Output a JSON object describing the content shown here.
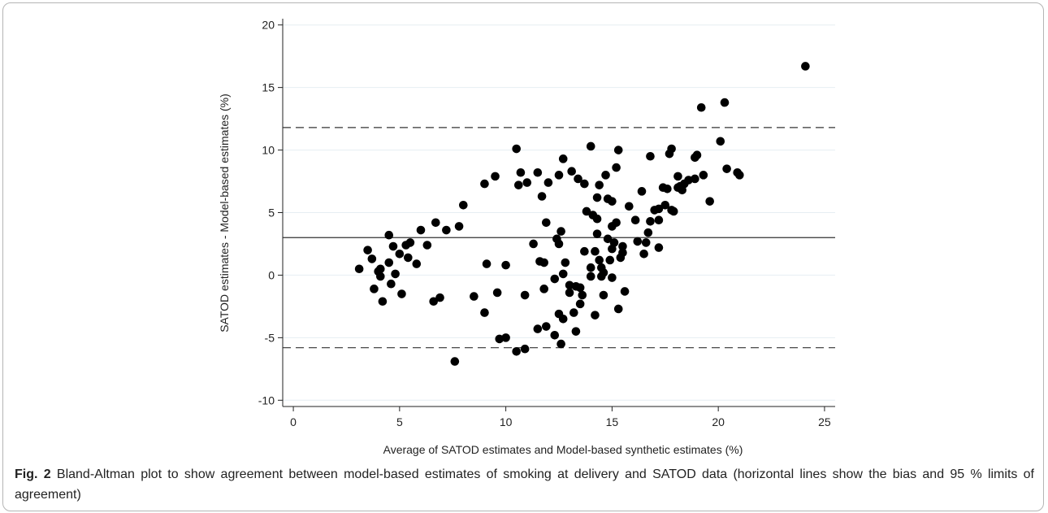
{
  "caption": {
    "label": "Fig. 2",
    "text": "Bland-Altman plot to show agreement between model-based estimates of smoking at delivery and SATOD data (horizontal lines show the bias and 95 % limits of agreement)"
  },
  "chart_data": {
    "type": "scatter",
    "title": "",
    "xlabel": "Average of SATOD estimates and Model-based synthetic estimates (%)",
    "ylabel": "SATOD estimates - Model-based estimates (%)",
    "xlim": [
      -0.5,
      25.5
    ],
    "ylim": [
      -10.5,
      20.5
    ],
    "xticks": [
      0,
      5,
      10,
      15,
      20,
      25
    ],
    "yticks": [
      -10,
      -5,
      0,
      5,
      10,
      15,
      20
    ],
    "grid": "horizontal",
    "colors": {
      "points": "#000000",
      "lines": "#333333",
      "grid": "#e6eef2"
    },
    "reference_lines": [
      {
        "kind": "bias",
        "y": 3.0,
        "style": "solid"
      },
      {
        "kind": "upper_limit",
        "y": 11.8,
        "style": "dashed"
      },
      {
        "kind": "lower_limit",
        "y": -5.8,
        "style": "dashed"
      }
    ],
    "points": [
      [
        3.1,
        0.5
      ],
      [
        3.5,
        2.0
      ],
      [
        3.7,
        1.3
      ],
      [
        3.8,
        -1.1
      ],
      [
        4.0,
        0.3
      ],
      [
        4.1,
        0.5
      ],
      [
        4.1,
        -0.1
      ],
      [
        4.2,
        -2.1
      ],
      [
        4.5,
        1.0
      ],
      [
        4.5,
        3.2
      ],
      [
        4.6,
        -0.7
      ],
      [
        4.7,
        2.3
      ],
      [
        4.8,
        0.1
      ],
      [
        5.0,
        1.7
      ],
      [
        5.1,
        -1.5
      ],
      [
        5.3,
        2.4
      ],
      [
        5.4,
        1.4
      ],
      [
        5.5,
        2.6
      ],
      [
        5.8,
        0.9
      ],
      [
        6.0,
        3.6
      ],
      [
        6.3,
        2.4
      ],
      [
        6.6,
        -2.1
      ],
      [
        6.7,
        4.2
      ],
      [
        6.9,
        -1.8
      ],
      [
        7.2,
        3.6
      ],
      [
        7.6,
        -6.9
      ],
      [
        7.8,
        3.9
      ],
      [
        8.0,
        5.6
      ],
      [
        8.5,
        -1.7
      ],
      [
        9.0,
        -3.0
      ],
      [
        9.0,
        7.3
      ],
      [
        9.1,
        0.9
      ],
      [
        9.5,
        7.9
      ],
      [
        9.6,
        -1.4
      ],
      [
        9.7,
        -5.1
      ],
      [
        10.0,
        -5.0
      ],
      [
        10.0,
        0.8
      ],
      [
        10.5,
        10.1
      ],
      [
        10.5,
        -6.1
      ],
      [
        10.6,
        7.2
      ],
      [
        10.7,
        8.2
      ],
      [
        10.9,
        -5.9
      ],
      [
        10.9,
        -1.6
      ],
      [
        11.0,
        7.4
      ],
      [
        11.3,
        2.5
      ],
      [
        11.5,
        8.2
      ],
      [
        11.5,
        -4.3
      ],
      [
        11.6,
        1.1
      ],
      [
        11.7,
        6.3
      ],
      [
        11.8,
        -1.1
      ],
      [
        11.8,
        1.0
      ],
      [
        11.9,
        4.2
      ],
      [
        11.9,
        -4.1
      ],
      [
        12.0,
        7.4
      ],
      [
        12.3,
        -0.3
      ],
      [
        12.3,
        -4.8
      ],
      [
        12.4,
        2.9
      ],
      [
        12.5,
        2.5
      ],
      [
        12.5,
        -3.1
      ],
      [
        12.5,
        8.0
      ],
      [
        12.6,
        3.5
      ],
      [
        12.6,
        -5.5
      ],
      [
        12.7,
        0.1
      ],
      [
        12.7,
        -3.5
      ],
      [
        12.7,
        9.3
      ],
      [
        12.8,
        1.0
      ],
      [
        13.0,
        -1.4
      ],
      [
        13.0,
        -0.8
      ],
      [
        13.1,
        8.3
      ],
      [
        13.2,
        -3.0
      ],
      [
        13.3,
        -0.9
      ],
      [
        13.3,
        -4.5
      ],
      [
        13.4,
        7.7
      ],
      [
        13.5,
        -1.0
      ],
      [
        13.5,
        -2.3
      ],
      [
        13.6,
        -1.6
      ],
      [
        13.7,
        7.3
      ],
      [
        13.7,
        1.9
      ],
      [
        13.8,
        5.1
      ],
      [
        14.0,
        10.3
      ],
      [
        14.0,
        0.6
      ],
      [
        14.0,
        -0.1
      ],
      [
        14.1,
        4.8
      ],
      [
        14.2,
        1.9
      ],
      [
        14.2,
        -3.2
      ],
      [
        14.3,
        6.2
      ],
      [
        14.3,
        4.5
      ],
      [
        14.3,
        3.3
      ],
      [
        14.4,
        1.2
      ],
      [
        14.4,
        7.2
      ],
      [
        14.5,
        -0.1
      ],
      [
        14.5,
        0.6
      ],
      [
        14.6,
        0.2
      ],
      [
        14.6,
        -1.6
      ],
      [
        14.7,
        8.0
      ],
      [
        14.8,
        2.9
      ],
      [
        14.8,
        6.1
      ],
      [
        14.9,
        1.2
      ],
      [
        15.0,
        -0.2
      ],
      [
        15.0,
        2.1
      ],
      [
        15.0,
        3.9
      ],
      [
        15.0,
        5.9
      ],
      [
        15.1,
        2.6
      ],
      [
        15.2,
        8.6
      ],
      [
        15.2,
        4.2
      ],
      [
        15.3,
        -2.7
      ],
      [
        15.3,
        10.0
      ],
      [
        15.4,
        1.4
      ],
      [
        15.5,
        1.8
      ],
      [
        15.5,
        2.3
      ],
      [
        15.6,
        -1.3
      ],
      [
        15.8,
        5.5
      ],
      [
        16.1,
        4.4
      ],
      [
        16.2,
        2.7
      ],
      [
        16.4,
        6.7
      ],
      [
        16.5,
        1.7
      ],
      [
        16.6,
        2.6
      ],
      [
        16.7,
        3.4
      ],
      [
        16.8,
        4.3
      ],
      [
        16.8,
        9.5
      ],
      [
        17.0,
        5.2
      ],
      [
        17.2,
        5.3
      ],
      [
        17.2,
        4.4
      ],
      [
        17.2,
        2.2
      ],
      [
        17.4,
        7.0
      ],
      [
        17.5,
        5.6
      ],
      [
        17.6,
        6.9
      ],
      [
        17.7,
        9.7
      ],
      [
        17.8,
        5.2
      ],
      [
        17.8,
        10.1
      ],
      [
        17.9,
        5.1
      ],
      [
        18.1,
        7.9
      ],
      [
        18.1,
        7.0
      ],
      [
        18.2,
        7.1
      ],
      [
        18.3,
        6.8
      ],
      [
        18.4,
        7.3
      ],
      [
        18.6,
        7.6
      ],
      [
        18.9,
        9.4
      ],
      [
        18.9,
        7.7
      ],
      [
        19.0,
        9.6
      ],
      [
        19.2,
        13.4
      ],
      [
        19.3,
        8.0
      ],
      [
        19.6,
        5.9
      ],
      [
        20.1,
        10.7
      ],
      [
        20.3,
        13.8
      ],
      [
        20.4,
        8.5
      ],
      [
        20.9,
        8.2
      ],
      [
        21.0,
        8.0
      ],
      [
        24.1,
        16.7
      ]
    ]
  }
}
